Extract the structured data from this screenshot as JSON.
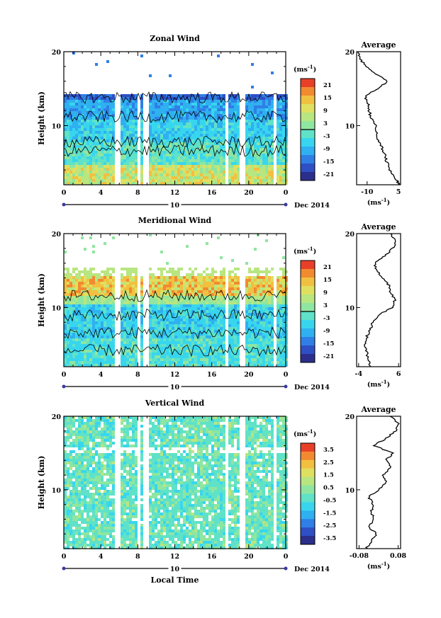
{
  "figure": {
    "date_label": "Dec 2014",
    "day_label": "10",
    "xlabel": "Local Time",
    "x_ticks": [
      "0",
      "4",
      "8",
      "12",
      "16",
      "20",
      "0"
    ],
    "y_ticks": [
      "20",
      "10"
    ],
    "ylabel": "Height (km)",
    "units_label": "(ms",
    "units_sup": "-1",
    "units_close": ")"
  },
  "colors": {
    "scale": [
      "#2b2e8a",
      "#2f4fc4",
      "#2f7fe6",
      "#2fb0f0",
      "#38d6ee",
      "#5fe2c8",
      "#8fe6a0",
      "#b8e680",
      "#e0e060",
      "#f2c040",
      "#f28a30",
      "#e84028"
    ]
  },
  "chart_data": [
    {
      "type": "heatmap",
      "title": "Zonal Wind",
      "x_range": [
        0,
        24
      ],
      "y_range": [
        2,
        20
      ],
      "colorbar_ticks": [
        "21",
        "15",
        "9",
        "3",
        "-3",
        "-9",
        "-15",
        "-21"
      ],
      "colorbar_range": [
        -24,
        24
      ],
      "profile": {
        "title": "Average",
        "xlabel": "(ms",
        "xlabel_sup": "-1",
        "xlabel_close": ")",
        "x_ticks": [
          "-10",
          "5"
        ],
        "x_range": [
          -15,
          6
        ],
        "y": [
          2,
          3,
          4,
          5,
          6,
          7,
          8,
          9,
          10,
          11,
          12,
          13,
          14,
          15,
          16,
          17,
          18,
          19,
          20
        ],
        "values": [
          5.5,
          3.0,
          1.0,
          -0.5,
          -1.5,
          -3.0,
          -4.5,
          -5.5,
          -6.0,
          -8.0,
          -9.0,
          -9.5,
          -11.0,
          -5.0,
          0.0,
          -6.0,
          -10.0,
          -13.5,
          -14.0
        ]
      }
    },
    {
      "type": "heatmap",
      "title": "Meridional Wind",
      "x_range": [
        0,
        24
      ],
      "y_range": [
        2,
        20
      ],
      "colorbar_ticks": [
        "21",
        "15",
        "9",
        "3",
        "-3",
        "-9",
        "-15",
        "-21"
      ],
      "colorbar_range": [
        -24,
        24
      ],
      "profile": {
        "title": "Average",
        "xlabel": "(ms",
        "xlabel_sup": "-1",
        "xlabel_close": ")",
        "x_ticks": [
          "-4",
          "6"
        ],
        "x_range": [
          -4.5,
          6.5
        ],
        "y": [
          2,
          3,
          4,
          5,
          6,
          7,
          8,
          9,
          10,
          11,
          12,
          13,
          14,
          15,
          16,
          17,
          18,
          19,
          20
        ],
        "values": [
          -1.0,
          -1.5,
          -2.0,
          -2.5,
          -2.0,
          -1.0,
          -0.5,
          1.0,
          4.5,
          5.0,
          4.0,
          3.5,
          2.0,
          0.5,
          0.0,
          2.5,
          4.5,
          5.5,
          4.0
        ]
      }
    },
    {
      "type": "heatmap",
      "title": "Vertical Wind",
      "x_range": [
        0,
        24
      ],
      "y_range": [
        2,
        20
      ],
      "colorbar_ticks": [
        "3.5",
        "2.5",
        "1.5",
        "0.5",
        "-0.5",
        "-1.5",
        "-2.5",
        "-3.5"
      ],
      "colorbar_range": [
        -4,
        4
      ],
      "profile": {
        "title": "Average",
        "xlabel": "(ms",
        "xlabel_sup": "-1",
        "xlabel_close": ")",
        "x_ticks": [
          "-0.08",
          "0.08"
        ],
        "x_range": [
          -0.09,
          0.09
        ],
        "y": [
          2,
          3,
          4,
          5,
          6,
          7,
          8,
          9,
          10,
          11,
          12,
          13,
          14,
          15,
          16,
          17,
          18,
          19,
          20
        ],
        "values": [
          -0.05,
          -0.03,
          -0.01,
          -0.04,
          -0.02,
          -0.03,
          -0.02,
          -0.04,
          0.0,
          0.03,
          0.02,
          0.05,
          0.03,
          0.06,
          -0.02,
          0.03,
          0.07,
          0.08,
          0.05
        ]
      }
    }
  ]
}
